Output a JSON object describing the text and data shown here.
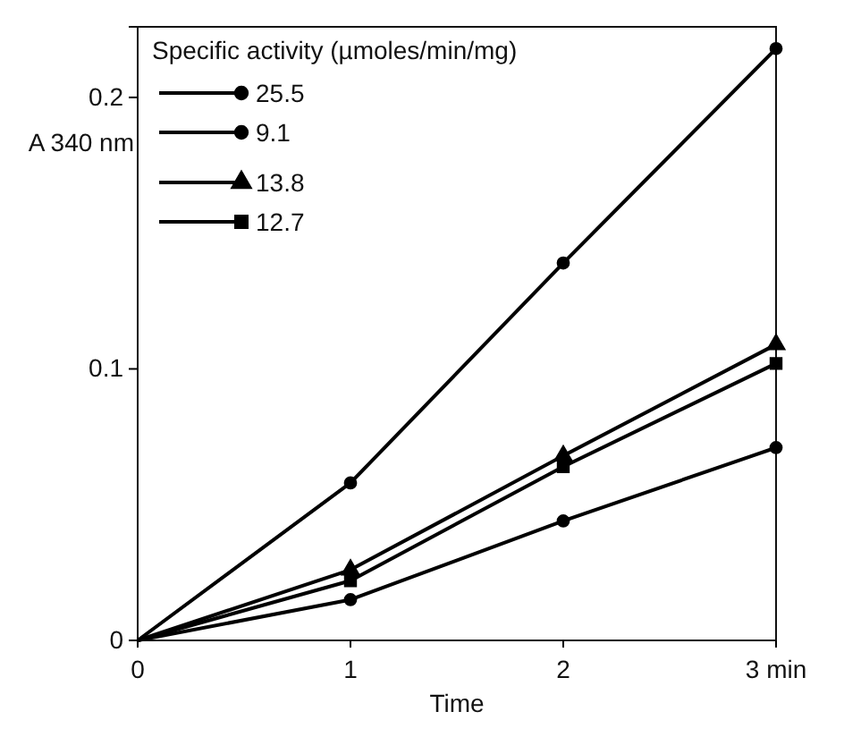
{
  "chart_data": {
    "type": "line",
    "xlabel": "Time",
    "ylabel": "A 340 nm",
    "legend_title": "Specific activity (µmoles/min/mg)",
    "legend": "top left",
    "grid": false,
    "x": [
      0,
      1,
      2,
      3
    ],
    "xlim": [
      0,
      3
    ],
    "xticks": [
      0,
      1,
      2,
      {
        "value": 3,
        "label": "3 min"
      }
    ],
    "ylim": [
      0,
      0.226
    ],
    "yticks": [
      0,
      0.1,
      0.2
    ],
    "series": [
      {
        "name": "25.5",
        "color": "#000000",
        "marker": "circle",
        "values": [
          0,
          0.058,
          0.139,
          0.218
        ]
      },
      {
        "name": "9.1",
        "color": "#000000",
        "marker": "circle",
        "values": [
          0,
          0.015,
          0.044,
          0.071
        ]
      },
      {
        "name": "13.8",
        "color": "#000000",
        "marker": "triangle",
        "values": [
          0,
          0.026,
          0.068,
          0.109
        ]
      },
      {
        "name": "12.7",
        "color": "#000000",
        "marker": "square",
        "values": [
          0,
          0.022,
          0.064,
          0.102
        ]
      }
    ]
  }
}
